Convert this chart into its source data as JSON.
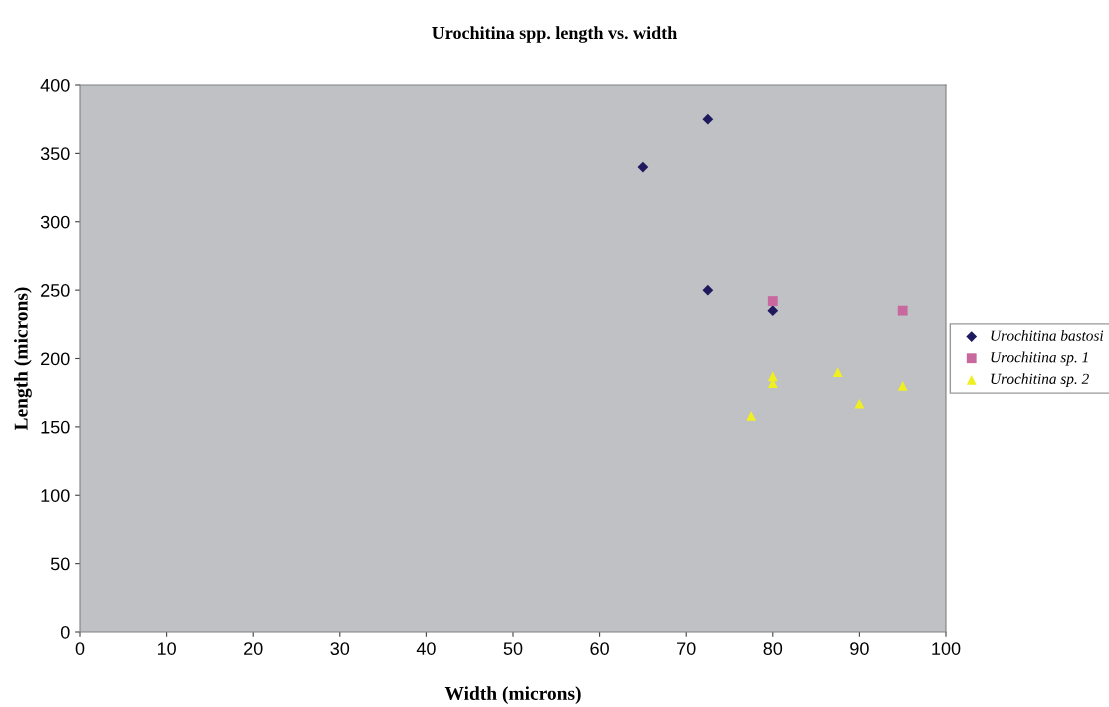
{
  "chart_data": {
    "type": "scatter",
    "title": "Urochitina spp. length vs. width",
    "xlabel": "Width (microns)",
    "ylabel": "Length (microns)",
    "xlim": [
      0,
      100
    ],
    "xticks": [
      0,
      10,
      20,
      30,
      40,
      50,
      60,
      70,
      80,
      90,
      100
    ],
    "ylim": [
      0,
      400
    ],
    "yticks": [
      0,
      50,
      100,
      150,
      200,
      250,
      300,
      350,
      400
    ],
    "grid": false,
    "legend": "right",
    "series": [
      {
        "name": "Urochitina bastosi",
        "color": "#1f1a5e",
        "marker": "diamond",
        "x": [
          72.5,
          65,
          72.5,
          80
        ],
        "values": [
          375,
          340,
          250,
          235
        ]
      },
      {
        "name": "Urochitina sp. 1",
        "color": "#c8689e",
        "marker": "square",
        "x": [
          80,
          95
        ],
        "values": [
          242,
          235
        ]
      },
      {
        "name": "Urochitina sp. 2",
        "color": "#f0f020",
        "marker": "triangle",
        "x": [
          77.5,
          80,
          80,
          87.5,
          90,
          95
        ],
        "values": [
          158,
          187,
          182,
          190,
          167,
          180
        ]
      }
    ]
  }
}
